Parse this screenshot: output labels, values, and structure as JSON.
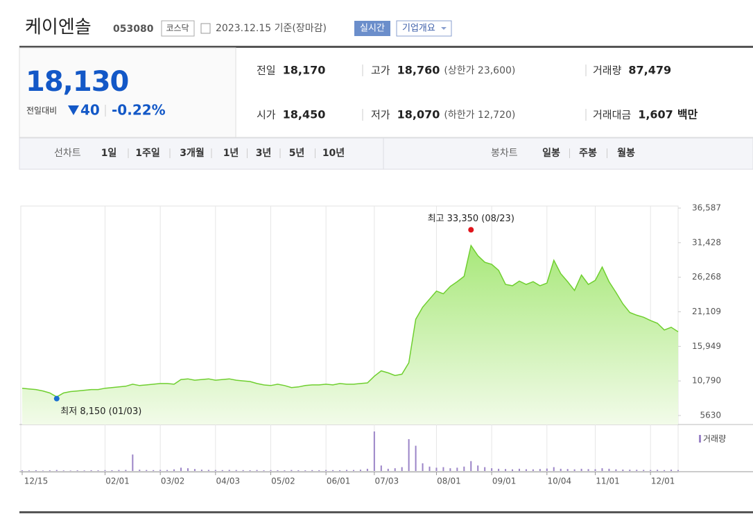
{
  "header": {
    "title": "케이엔솔",
    "code": "053080",
    "market": "코스닥",
    "date": "2023.12.15 기준(장마감)",
    "realtime": "실시간",
    "company": "기업개요"
  },
  "quote": {
    "price": "18,130",
    "change_label": "전일대비",
    "change": "40",
    "change_pct": "-0.22%",
    "stats": [
      [
        {
          "label": "전일",
          "value": "18,170"
        },
        {
          "label": "고가",
          "value": "18,760",
          "note": "(상한가 23,600)"
        },
        {
          "label": "거래량",
          "value": "87,479"
        }
      ],
      [
        {
          "label": "시가",
          "value": "18,450"
        },
        {
          "label": "저가",
          "value": "18,070",
          "note": "(하한가 12,720)"
        },
        {
          "label": "거래대금",
          "value": "1,607",
          "note": "백만"
        }
      ]
    ]
  },
  "tabs": {
    "line": {
      "label": "선차트",
      "items": [
        "1일",
        "1주일",
        "3개월",
        "1년",
        "3년",
        "5년",
        "10년"
      ],
      "active": 3
    },
    "candle": {
      "label": "봉차트",
      "items": [
        "일봉",
        "주봉",
        "월봉"
      ]
    }
  },
  "chart_data": {
    "type": "area",
    "color": "#6fcf2f",
    "categories": [
      "12/15",
      null,
      null,
      null,
      null,
      null,
      null,
      null,
      null,
      null,
      null,
      null,
      "02/01",
      null,
      null,
      null,
      null,
      null,
      null,
      null,
      "03/02",
      null,
      null,
      null,
      null,
      null,
      null,
      null,
      "04/03",
      null,
      null,
      null,
      null,
      null,
      null,
      null,
      "05/02",
      null,
      null,
      null,
      null,
      null,
      null,
      null,
      "06/01",
      null,
      null,
      null,
      null,
      null,
      null,
      "07/03",
      null,
      null,
      null,
      null,
      null,
      null,
      null,
      null,
      "08/01",
      null,
      null,
      null,
      null,
      null,
      null,
      null,
      "09/01",
      null,
      null,
      null,
      null,
      null,
      null,
      null,
      "10/04",
      null,
      null,
      null,
      null,
      null,
      null,
      "11/01",
      null,
      null,
      null,
      null,
      null,
      null,
      null,
      "12/01",
      null,
      null,
      null,
      null
    ],
    "values": [
      9700,
      9600,
      9500,
      9300,
      9000,
      8400,
      9000,
      9200,
      9300,
      9400,
      9500,
      9500,
      9700,
      9800,
      9900,
      10000,
      10300,
      10100,
      10200,
      10300,
      10400,
      10400,
      10300,
      11000,
      11100,
      10900,
      11000,
      11100,
      10900,
      11000,
      11100,
      10900,
      10800,
      10700,
      10400,
      10200,
      10100,
      10300,
      10100,
      9800,
      9900,
      10100,
      10200,
      10200,
      10300,
      10200,
      10400,
      10300,
      10300,
      10400,
      10500,
      11500,
      12300,
      12000,
      11600,
      11800,
      13500,
      20000,
      21800,
      23000,
      24200,
      23800,
      24900,
      25600,
      26400,
      31000,
      29500,
      28500,
      28200,
      27300,
      25200,
      25000,
      25700,
      25200,
      25600,
      25000,
      25400,
      28800,
      26800,
      25600,
      24300,
      26600,
      25200,
      25800,
      27800,
      25600,
      24000,
      22300,
      21000,
      20600,
      20300,
      19800,
      19400,
      18400,
      18800,
      18130
    ],
    "ylim": [
      5630,
      36587
    ],
    "yticks": [
      5630,
      {
        "value": 10790,
        "label": "10,790"
      },
      {
        "value": 15949,
        "label": "15,949"
      },
      {
        "value": 21109,
        "label": "21,109"
      },
      {
        "value": 26268,
        "label": "26,268"
      },
      {
        "value": 31428,
        "label": "31,428"
      },
      {
        "value": 36587,
        "label": "36,587"
      }
    ],
    "grid": "x",
    "annotations": [
      {
        "text": "최고 33,350 (08/23)",
        "value": 33350,
        "color": "#e0141b",
        "kind": "max"
      },
      {
        "text": "최저 8,150 (01/03)",
        "value": 8150,
        "color": "#1b6fd1",
        "kind": "min"
      }
    ],
    "volume": {
      "name": "거래량",
      "color": "#9b84c7",
      "values": [
        60000,
        50000,
        70000,
        40000,
        60000,
        90000,
        50000,
        40000,
        60000,
        50000,
        70000,
        60000,
        80000,
        70000,
        90000,
        100000,
        1500000,
        120000,
        90000,
        80000,
        100000,
        90000,
        150000,
        300000,
        250000,
        180000,
        120000,
        100000,
        90000,
        80000,
        100000,
        90000,
        80000,
        70000,
        90000,
        60000,
        80000,
        70000,
        60000,
        90000,
        70000,
        60000,
        80000,
        70000,
        90000,
        80000,
        70000,
        100000,
        90000,
        120000,
        200000,
        3600000,
        500000,
        200000,
        250000,
        350000,
        2900000,
        2300000,
        700000,
        400000,
        300000,
        350000,
        250000,
        300000,
        400000,
        900000,
        500000,
        350000,
        250000,
        200000,
        180000,
        150000,
        200000,
        160000,
        150000,
        180000,
        220000,
        350000,
        200000,
        180000,
        150000,
        200000,
        170000,
        160000,
        250000,
        200000,
        150000,
        130000,
        120000,
        110000,
        100000,
        90000,
        110000,
        80000,
        120000,
        87479
      ]
    }
  }
}
